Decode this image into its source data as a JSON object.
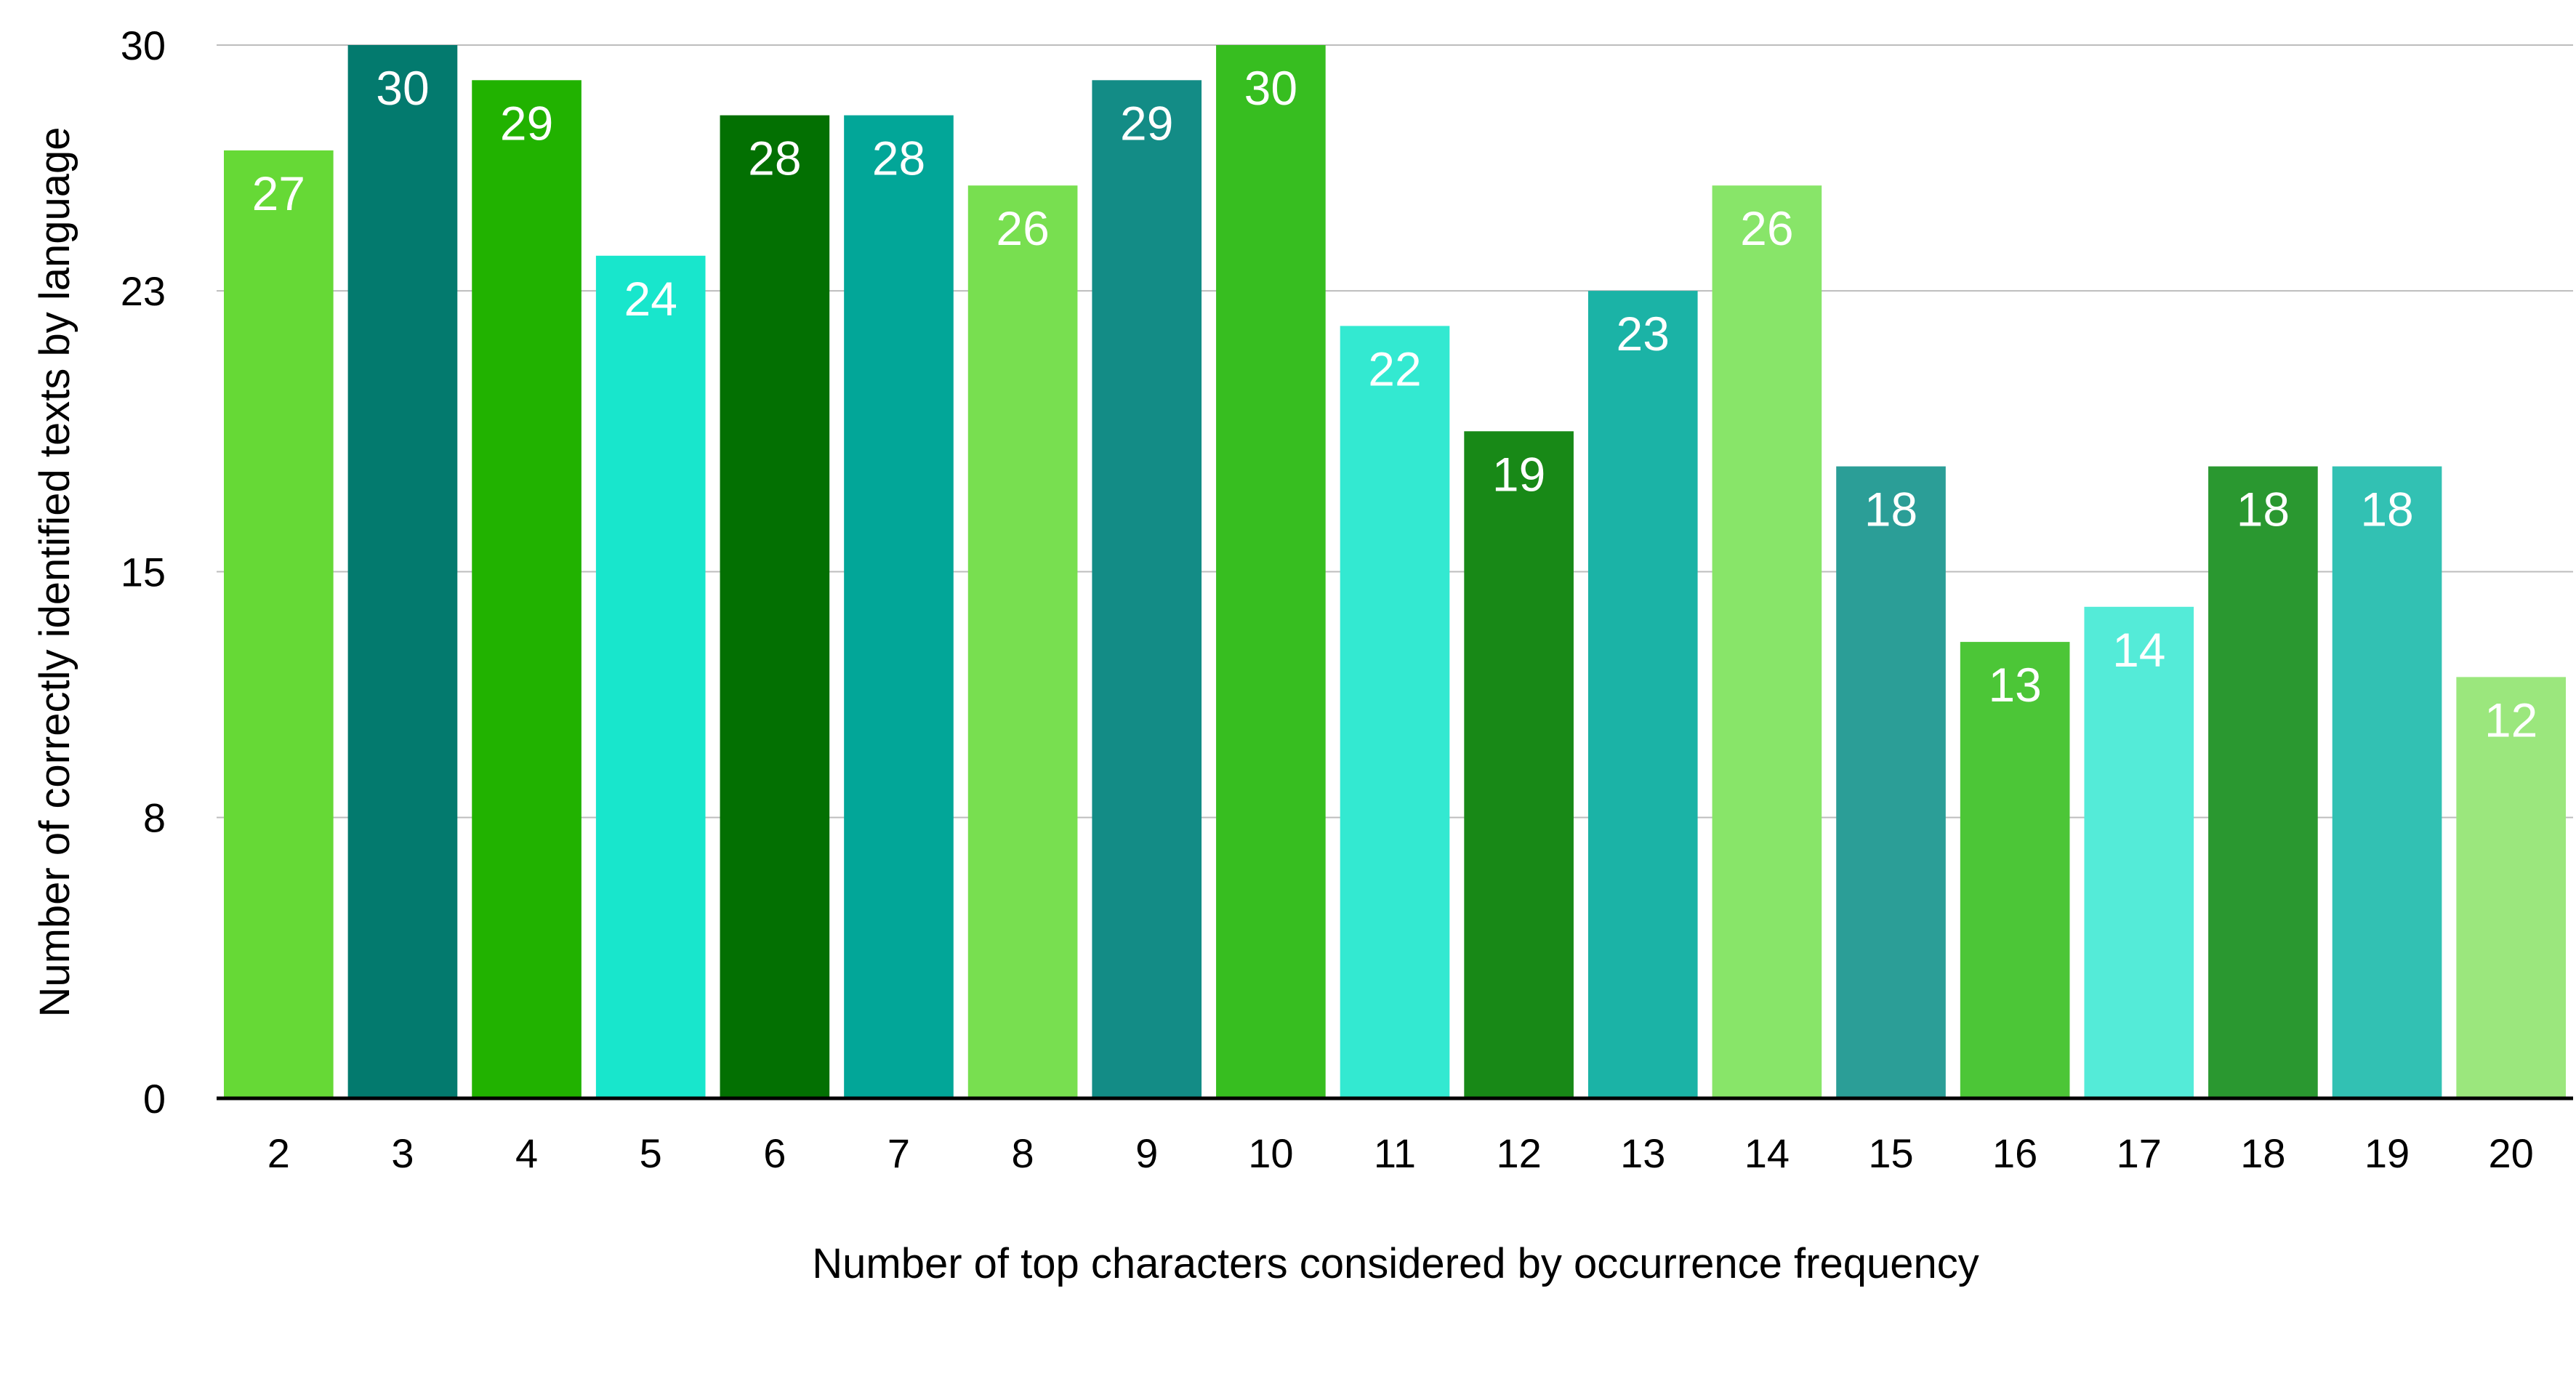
{
  "chart_data": {
    "type": "bar",
    "categories": [
      "2",
      "3",
      "4",
      "5",
      "6",
      "7",
      "8",
      "9",
      "10",
      "11",
      "12",
      "13",
      "14",
      "15",
      "16",
      "17",
      "18",
      "19",
      "20"
    ],
    "values": [
      27,
      30,
      29,
      24,
      28,
      28,
      26,
      29,
      30,
      22,
      19,
      23,
      26,
      18,
      13,
      14,
      18,
      18,
      12
    ],
    "data_labels": [
      "27",
      "30",
      "29",
      "24",
      "28",
      "28",
      "26",
      "29",
      "30",
      "22",
      "19",
      "23",
      "26",
      "18",
      "13",
      "14",
      "18",
      "18",
      "12"
    ],
    "bar_colors": [
      "#66d936",
      "#037a6e",
      "#21b200",
      "#18e6cc",
      "#037002",
      "#02a698",
      "#78df50",
      "#138c86",
      "#37be20",
      "#33e9d1",
      "#188917",
      "#1bb3a6",
      "#88e569",
      "#2b9e97",
      "#4cc637",
      "#54ebd8",
      "#2a9830",
      "#32c1b3",
      "#9be77d"
    ],
    "ylim": [
      0,
      30
    ],
    "yticks": [
      0,
      8,
      15,
      23,
      30
    ],
    "ytick_labels": [
      "0",
      "8",
      "15",
      "23",
      "30"
    ],
    "xlabel": "Number of top characters considered by occurrence frequency",
    "ylabel": "Number of correctly identified texts by language",
    "title": "",
    "grid": true,
    "legend": "none"
  }
}
